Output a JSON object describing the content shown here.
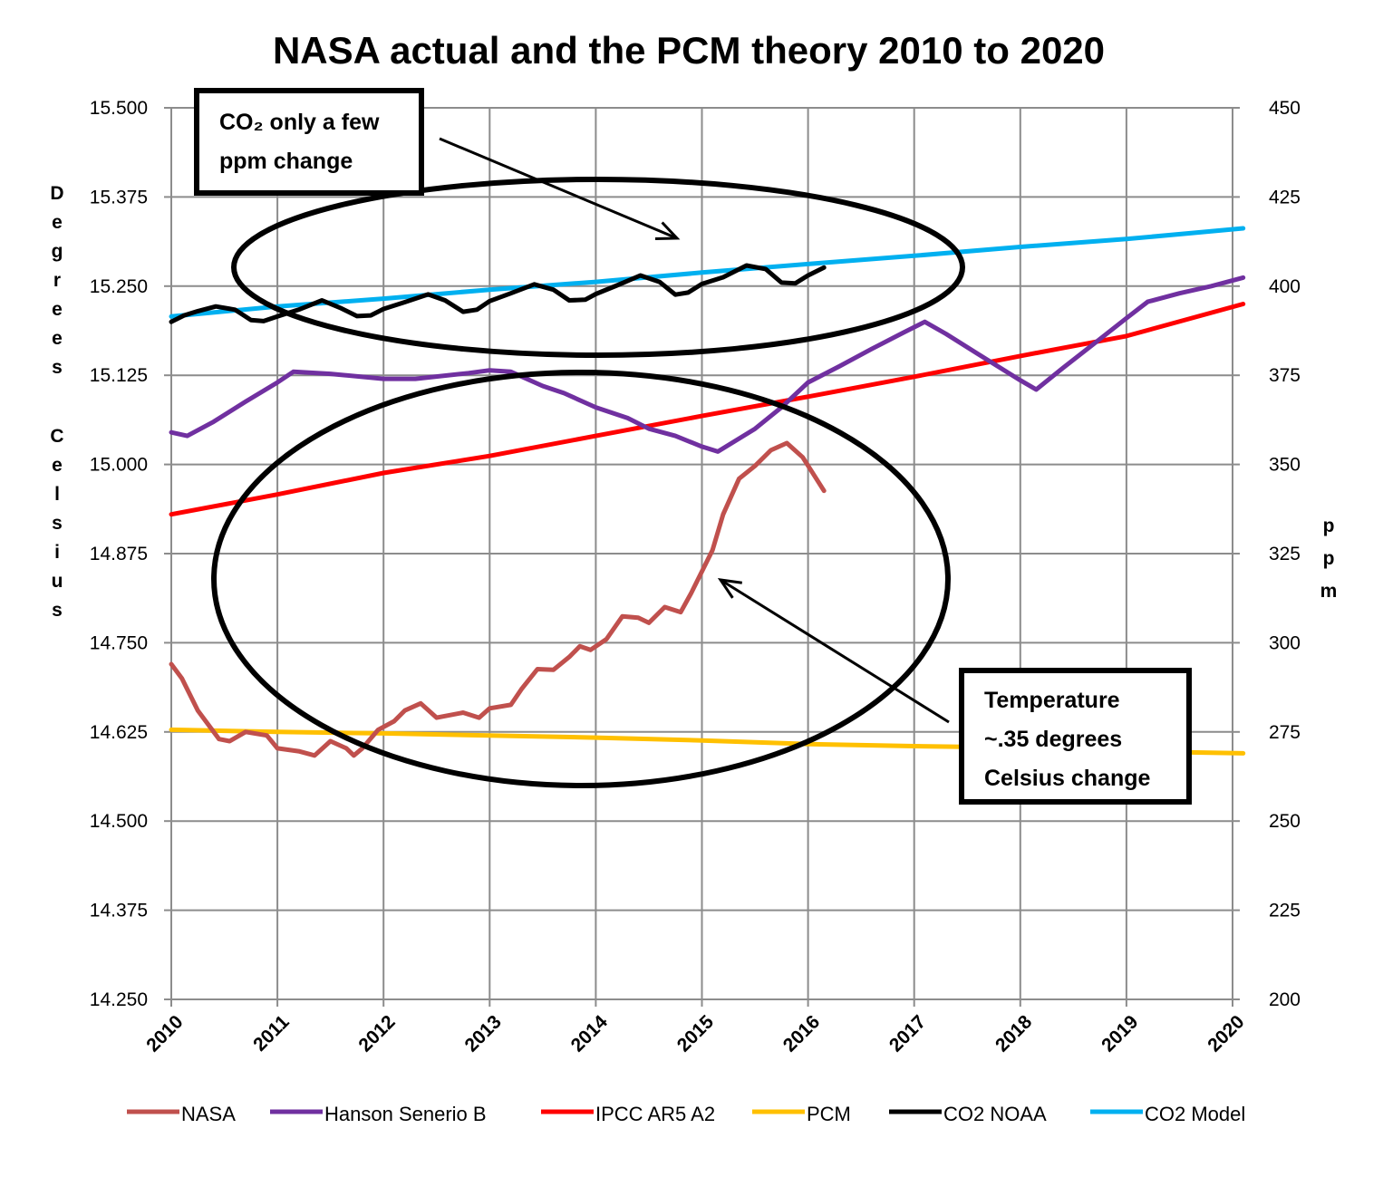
{
  "chart_data": {
    "type": "line",
    "title": "NASA actual and the PCM theory 2010 to 2020",
    "ylabel": "Degrees Celsius",
    "y2label": "ppm",
    "xlim": [
      2010,
      2020
    ],
    "ylim": [
      14.25,
      15.5
    ],
    "y2lim": [
      200,
      450
    ],
    "x_ticks": [
      "2010",
      "2011",
      "2012",
      "2013",
      "2014",
      "2015",
      "2016",
      "2017",
      "2018",
      "2019",
      "2020"
    ],
    "y_ticks": [
      "15.500",
      "15.375",
      "15.250",
      "15.125",
      "15.000",
      "14.875",
      "14.750",
      "14.625",
      "14.500",
      "14.375",
      "14.250"
    ],
    "y2_ticks": [
      "450",
      "425",
      "400",
      "375",
      "350",
      "325",
      "300",
      "275",
      "250",
      "225",
      "200"
    ],
    "grid": true,
    "legend_position": "bottom",
    "series": [
      {
        "name": "NASA",
        "axis": "left",
        "color": "#C0504D",
        "points": [
          [
            2010.0,
            14.72
          ],
          [
            2010.1,
            14.7
          ],
          [
            2010.25,
            14.655
          ],
          [
            2010.45,
            14.615
          ],
          [
            2010.55,
            14.612
          ],
          [
            2010.7,
            14.625
          ],
          [
            2010.9,
            14.62
          ],
          [
            2011.0,
            14.602
          ],
          [
            2011.2,
            14.598
          ],
          [
            2011.35,
            14.592
          ],
          [
            2011.5,
            14.612
          ],
          [
            2011.65,
            14.602
          ],
          [
            2011.72,
            14.592
          ],
          [
            2011.8,
            14.602
          ],
          [
            2011.95,
            14.628
          ],
          [
            2012.1,
            14.64
          ],
          [
            2012.2,
            14.655
          ],
          [
            2012.35,
            14.665
          ],
          [
            2012.5,
            14.645
          ],
          [
            2012.75,
            14.652
          ],
          [
            2012.9,
            14.645
          ],
          [
            2013.0,
            14.658
          ],
          [
            2013.2,
            14.663
          ],
          [
            2013.3,
            14.685
          ],
          [
            2013.45,
            14.713
          ],
          [
            2013.6,
            14.712
          ],
          [
            2013.75,
            14.73
          ],
          [
            2013.85,
            14.745
          ],
          [
            2013.95,
            14.74
          ],
          [
            2014.1,
            14.755
          ],
          [
            2014.25,
            14.787
          ],
          [
            2014.4,
            14.785
          ],
          [
            2014.5,
            14.778
          ],
          [
            2014.65,
            14.8
          ],
          [
            2014.8,
            14.793
          ],
          [
            2014.9,
            14.82
          ],
          [
            2015.1,
            14.88
          ],
          [
            2015.2,
            14.93
          ],
          [
            2015.35,
            14.98
          ],
          [
            2015.5,
            14.998
          ],
          [
            2015.65,
            15.02
          ],
          [
            2015.8,
            15.03
          ],
          [
            2015.95,
            15.01
          ],
          [
            2016.15,
            14.963
          ]
        ]
      },
      {
        "name": "Hanson Senerio B",
        "axis": "left",
        "color": "#7030A0",
        "points": [
          [
            2010.0,
            15.045
          ],
          [
            2010.15,
            15.04
          ],
          [
            2010.4,
            15.06
          ],
          [
            2010.7,
            15.088
          ],
          [
            2011.0,
            15.115
          ],
          [
            2011.15,
            15.13
          ],
          [
            2011.5,
            15.127
          ],
          [
            2012.0,
            15.12
          ],
          [
            2012.3,
            15.12
          ],
          [
            2012.8,
            15.128
          ],
          [
            2013.0,
            15.132
          ],
          [
            2013.2,
            15.13
          ],
          [
            2013.5,
            15.11
          ],
          [
            2013.7,
            15.1
          ],
          [
            2014.0,
            15.08
          ],
          [
            2014.3,
            15.065
          ],
          [
            2014.5,
            15.05
          ],
          [
            2014.75,
            15.04
          ],
          [
            2015.0,
            15.025
          ],
          [
            2015.15,
            15.018
          ],
          [
            2015.5,
            15.05
          ],
          [
            2015.75,
            15.08
          ],
          [
            2016.0,
            15.115
          ],
          [
            2016.3,
            15.138
          ],
          [
            2016.6,
            15.162
          ],
          [
            2016.9,
            15.185
          ],
          [
            2017.1,
            15.2
          ],
          [
            2017.3,
            15.183
          ],
          [
            2017.6,
            15.155
          ],
          [
            2018.0,
            15.118
          ],
          [
            2018.15,
            15.105
          ],
          [
            2018.4,
            15.135
          ],
          [
            2018.7,
            15.17
          ],
          [
            2019.0,
            15.205
          ],
          [
            2019.2,
            15.228
          ],
          [
            2019.5,
            15.24
          ],
          [
            2019.8,
            15.25
          ],
          [
            2020.1,
            15.262
          ]
        ]
      },
      {
        "name": "IPCC AR5 A2",
        "axis": "left",
        "color": "#FF0000",
        "points": [
          [
            2010.0,
            14.93
          ],
          [
            2011.0,
            14.958
          ],
          [
            2012.0,
            14.988
          ],
          [
            2013.0,
            15.012
          ],
          [
            2014.0,
            15.04
          ],
          [
            2015.0,
            15.068
          ],
          [
            2016.0,
            15.095
          ],
          [
            2017.0,
            15.123
          ],
          [
            2018.0,
            15.152
          ],
          [
            2019.0,
            15.18
          ],
          [
            2020.1,
            15.225
          ]
        ]
      },
      {
        "name": "PCM",
        "axis": "left",
        "color": "#FFC000",
        "points": [
          [
            2010.0,
            14.628
          ],
          [
            2011.0,
            14.625
          ],
          [
            2012.0,
            14.623
          ],
          [
            2013.0,
            14.62
          ],
          [
            2014.0,
            14.617
          ],
          [
            2015.0,
            14.613
          ],
          [
            2016.0,
            14.608
          ],
          [
            2017.0,
            14.605
          ],
          [
            2018.0,
            14.603
          ],
          [
            2019.0,
            14.598
          ],
          [
            2020.1,
            14.595
          ]
        ]
      },
      {
        "name": "CO2 NOAA",
        "axis": "right",
        "color": "#000000",
        "points": [
          [
            2010.0,
            390.0
          ],
          [
            2010.12,
            391.8
          ],
          [
            2010.25,
            393.0
          ],
          [
            2010.42,
            394.3
          ],
          [
            2010.6,
            393.4
          ],
          [
            2010.75,
            390.5
          ],
          [
            2010.87,
            390.2
          ],
          [
            2011.0,
            391.5
          ],
          [
            2011.2,
            393.4
          ],
          [
            2011.42,
            396.0
          ],
          [
            2011.6,
            393.8
          ],
          [
            2011.75,
            391.6
          ],
          [
            2011.88,
            391.8
          ],
          [
            2012.0,
            393.6
          ],
          [
            2012.2,
            395.5
          ],
          [
            2012.42,
            397.7
          ],
          [
            2012.58,
            396.0
          ],
          [
            2012.75,
            392.8
          ],
          [
            2012.88,
            393.4
          ],
          [
            2013.0,
            395.8
          ],
          [
            2013.2,
            398.0
          ],
          [
            2013.42,
            400.5
          ],
          [
            2013.6,
            399.0
          ],
          [
            2013.75,
            396.0
          ],
          [
            2013.9,
            396.2
          ],
          [
            2014.0,
            397.8
          ],
          [
            2014.2,
            400.2
          ],
          [
            2014.42,
            403.0
          ],
          [
            2014.6,
            401.2
          ],
          [
            2014.75,
            397.6
          ],
          [
            2014.87,
            398.2
          ],
          [
            2015.0,
            400.6
          ],
          [
            2015.2,
            402.5
          ],
          [
            2015.42,
            405.8
          ],
          [
            2015.6,
            404.8
          ],
          [
            2015.75,
            401.0
          ],
          [
            2015.88,
            400.8
          ],
          [
            2016.0,
            403.0
          ],
          [
            2016.15,
            405.2
          ]
        ]
      },
      {
        "name": "CO2 Model",
        "axis": "right",
        "color": "#00B0F0",
        "points": [
          [
            2010.0,
            391.5
          ],
          [
            2011.0,
            394.3
          ],
          [
            2012.0,
            396.5
          ],
          [
            2013.0,
            399.0
          ],
          [
            2014.0,
            401.2
          ],
          [
            2015.0,
            403.8
          ],
          [
            2016.0,
            406.2
          ],
          [
            2017.0,
            408.5
          ],
          [
            2018.0,
            411.0
          ],
          [
            2019.0,
            413.2
          ],
          [
            2020.1,
            416.2
          ]
        ]
      }
    ],
    "annotations": [
      {
        "lines": [
          "CO₂ only a few",
          "ppm change"
        ]
      },
      {
        "lines": [
          "Temperature",
          "~.35 degrees",
          "Celsius change"
        ]
      }
    ]
  }
}
